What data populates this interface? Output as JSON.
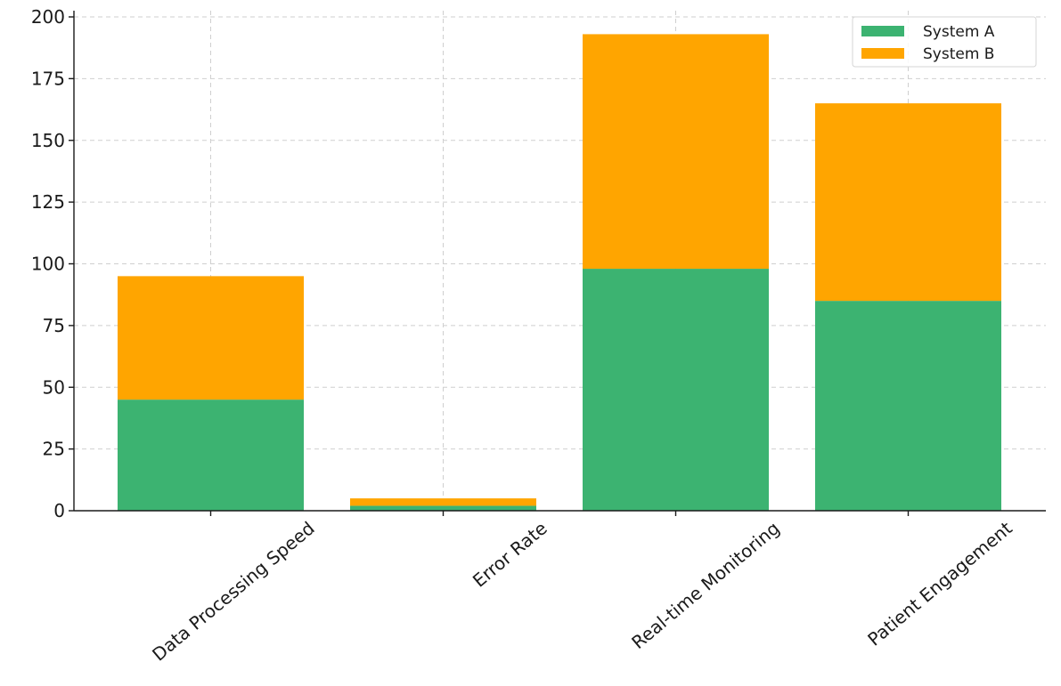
{
  "chart_data": {
    "type": "bar",
    "stacked": true,
    "categories": [
      "Data Processing Speed",
      "Error Rate",
      "Real-time Monitoring",
      "Patient Engagement"
    ],
    "series": [
      {
        "name": "System A",
        "color": "#3CB371",
        "values": [
          45,
          2,
          98,
          85
        ]
      },
      {
        "name": "System B",
        "color": "#FFA500",
        "values": [
          50,
          3,
          95,
          80
        ]
      }
    ],
    "y_ticks": [
      0,
      25,
      50,
      75,
      100,
      125,
      150,
      175,
      200
    ],
    "ylim": [
      0,
      200
    ],
    "grid": true,
    "legend_position": "top-right",
    "title": "",
    "xlabel": "",
    "ylabel": ""
  }
}
